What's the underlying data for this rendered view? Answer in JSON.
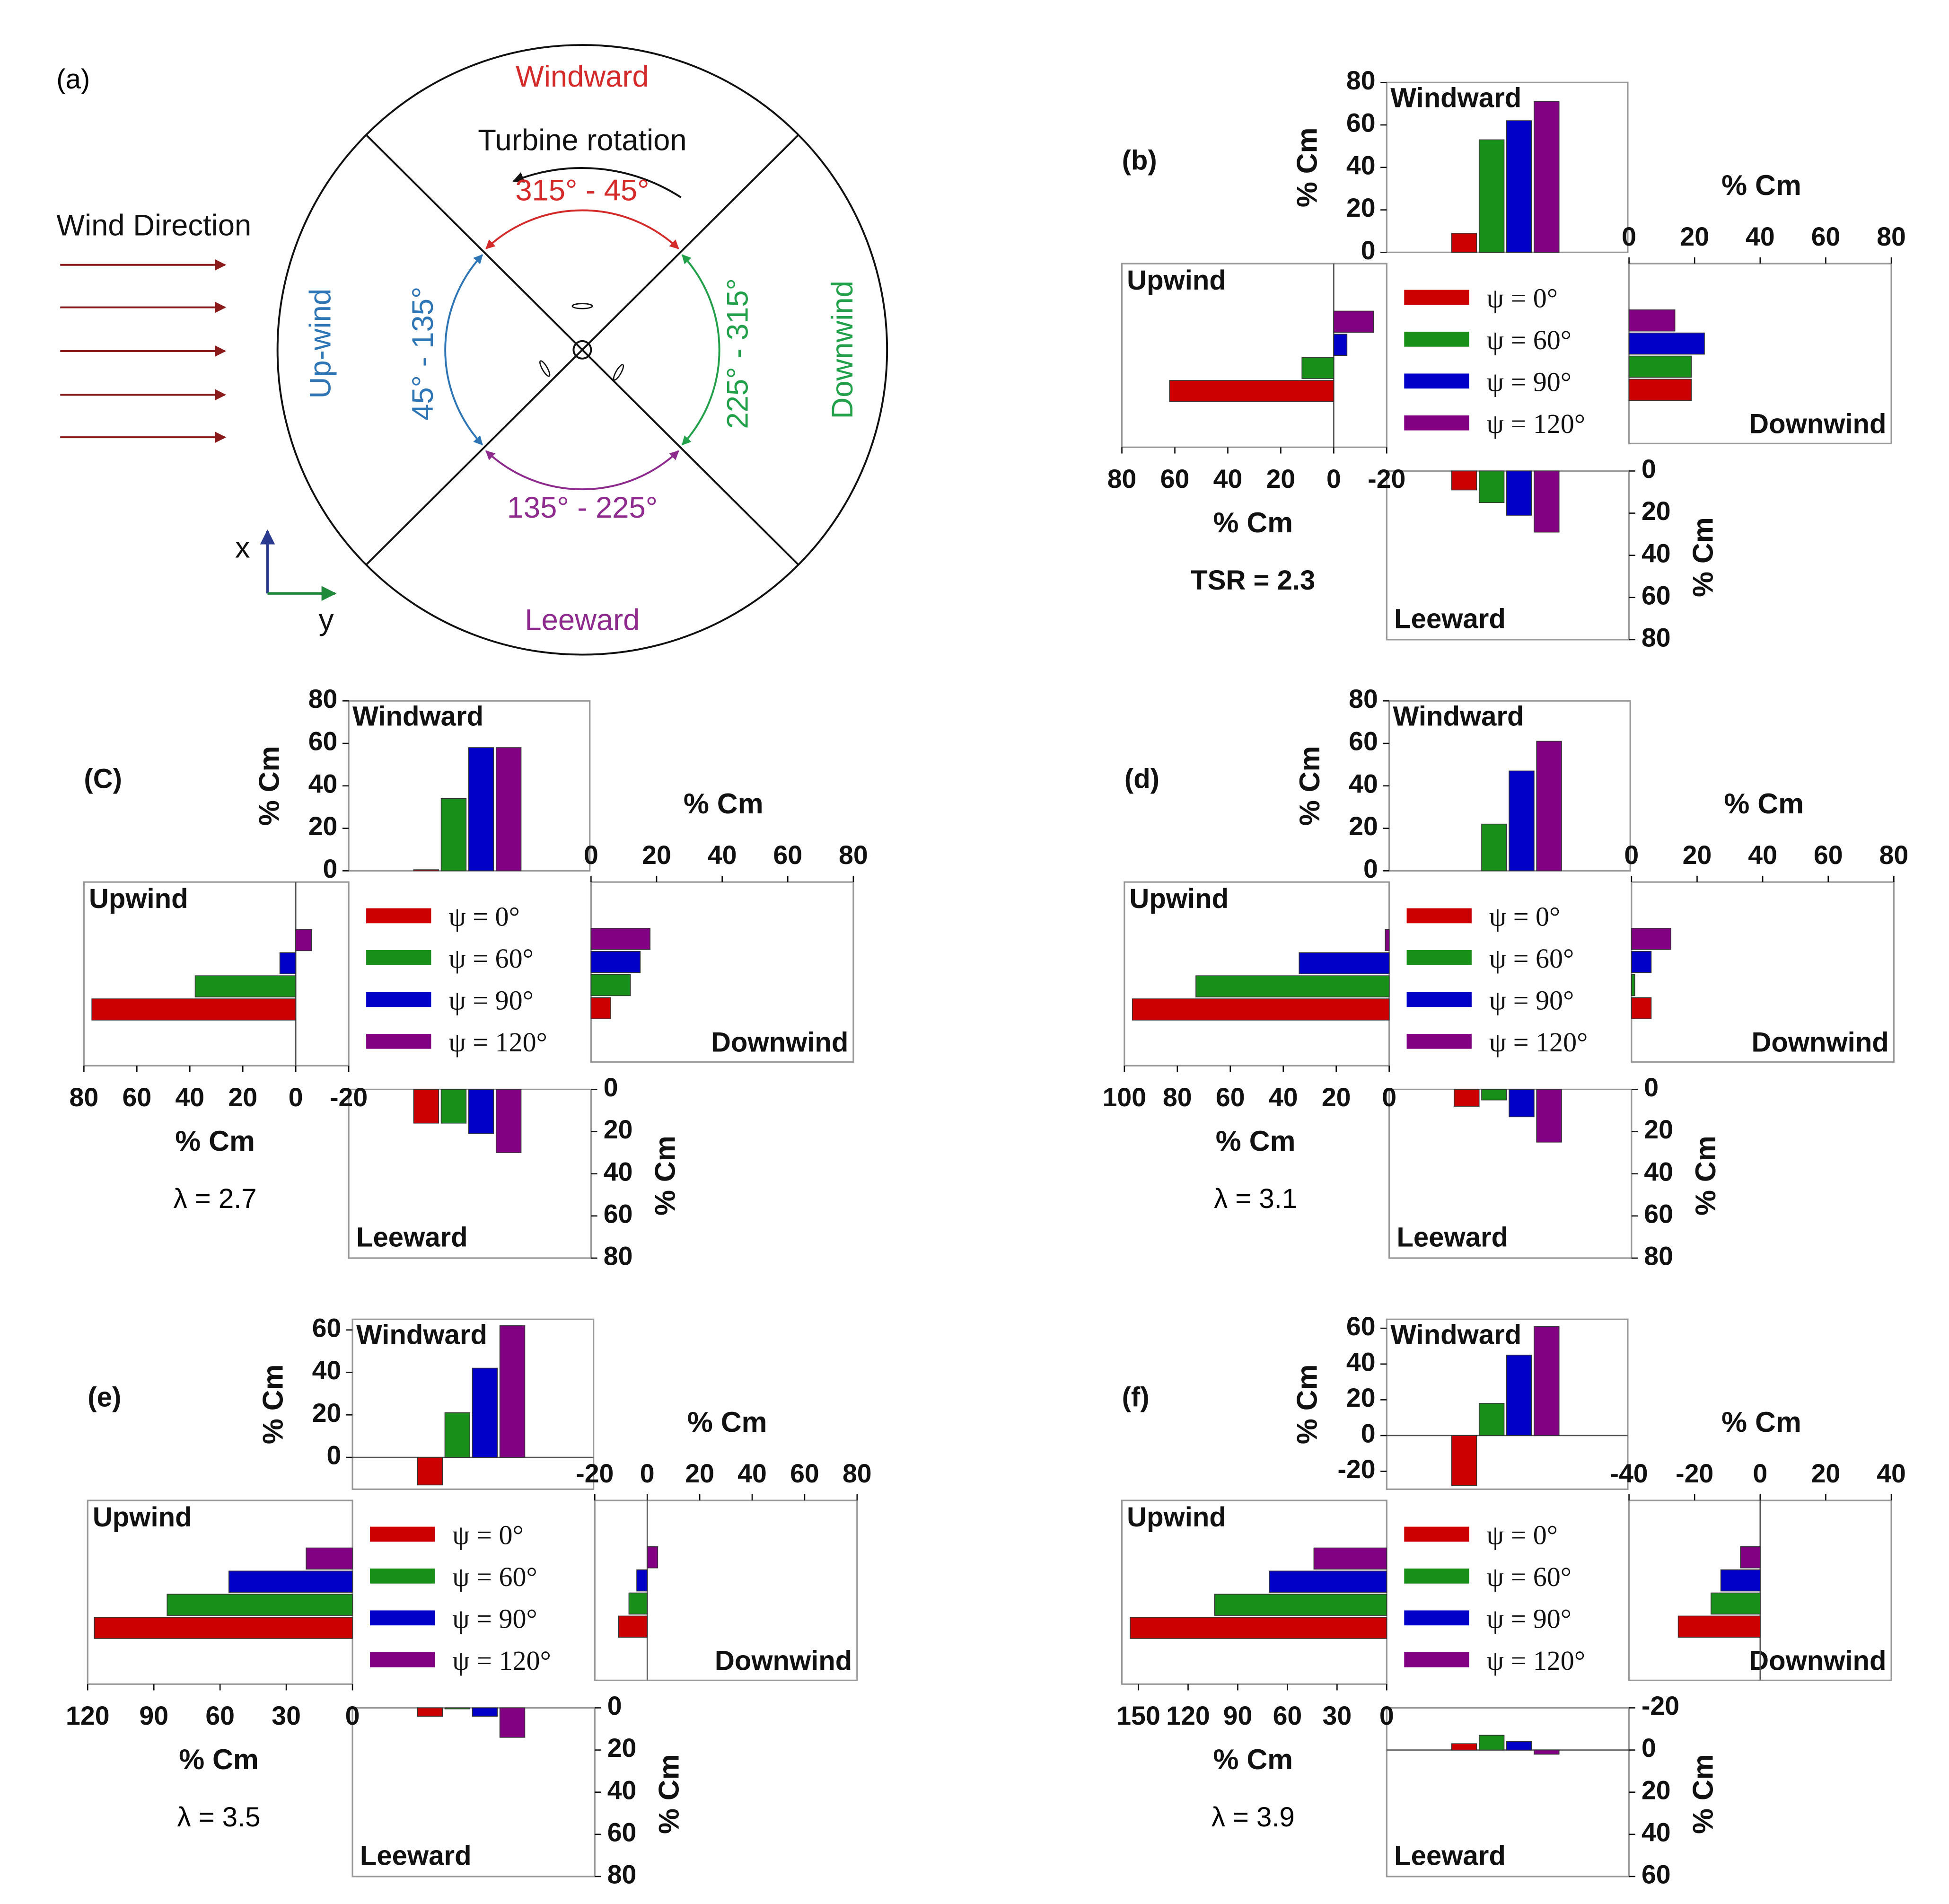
{
  "diagram": {
    "label": "(a)",
    "windward": "Windward",
    "leeward": "Leeward",
    "upwind": "Up-wind",
    "downwind": "Downwind",
    "rotation": "Turbine rotation",
    "wind": "Wind Direction",
    "arc_top": "315° - 45°",
    "arc_left": "45° - 135°",
    "arc_bottom": "135° - 225°",
    "arc_right": "225° - 315°",
    "x": "x",
    "y": "y"
  },
  "chart_data": [
    {
      "type": "quad-bar",
      "label": "(b)",
      "note": "TSR = 2.3",
      "series": [
        {
          "name": "ψ = 0°",
          "color": "#cc0000"
        },
        {
          "name": "ψ = 60°",
          "color": "#188f18"
        },
        {
          "name": "ψ = 90°",
          "color": "#0000c8"
        },
        {
          "name": "ψ = 120°",
          "color": "#820082"
        }
      ],
      "windward": {
        "title": "Windward",
        "axis_label": "% Cm",
        "values": [
          9,
          53,
          62,
          71
        ],
        "ylim": [
          0,
          80
        ],
        "yticks": [
          0,
          20,
          40,
          60,
          80
        ]
      },
      "upwind": {
        "title": "Upwind",
        "axis_label": "% Cm",
        "values": [
          62,
          12,
          -5,
          -15
        ],
        "xlim": [
          80,
          -20
        ],
        "xticks": [
          80,
          60,
          40,
          20,
          0,
          -20
        ]
      },
      "downwind": {
        "title": "Downwind",
        "axis_label": "% Cm",
        "values": [
          19,
          19,
          23,
          14
        ],
        "xlim": [
          0,
          80
        ],
        "xticks": [
          0,
          20,
          40,
          60,
          80
        ]
      },
      "leeward": {
        "title": "Leeward",
        "axis_label": "% Cm",
        "values": [
          9,
          15,
          21,
          29
        ],
        "ylim": [
          0,
          80
        ],
        "yticks": [
          0,
          20,
          40,
          60,
          80
        ]
      }
    },
    {
      "type": "quad-bar",
      "label": "(C)",
      "note": "λ = 2.7",
      "series": [
        {
          "name": "ψ = 0°",
          "color": "#cc0000"
        },
        {
          "name": "ψ = 60°",
          "color": "#188f18"
        },
        {
          "name": "ψ = 90°",
          "color": "#0000c8"
        },
        {
          "name": "ψ = 120°",
          "color": "#820082"
        }
      ],
      "windward": {
        "title": "Windward",
        "axis_label": "% Cm",
        "values": [
          0.5,
          34,
          58,
          58
        ],
        "ylim": [
          0,
          80
        ],
        "yticks": [
          0,
          20,
          40,
          60,
          80
        ]
      },
      "upwind": {
        "title": "Upwind",
        "axis_label": "% Cm",
        "values": [
          77,
          38,
          6,
          -6
        ],
        "xlim": [
          80,
          -20
        ],
        "xticks": [
          80,
          60,
          40,
          20,
          0,
          -20
        ]
      },
      "downwind": {
        "title": "Downwind",
        "axis_label": "% Cm",
        "values": [
          6,
          12,
          15,
          18
        ],
        "xlim": [
          0,
          80
        ],
        "xticks": [
          0,
          20,
          40,
          60,
          80
        ]
      },
      "leeward": {
        "title": "Leeward",
        "axis_label": "% Cm",
        "values": [
          16,
          16,
          21,
          30
        ],
        "ylim": [
          0,
          80
        ],
        "yticks": [
          0,
          20,
          40,
          60,
          80
        ]
      }
    },
    {
      "type": "quad-bar",
      "label": "(d)",
      "note": "λ = 3.1",
      "series": [
        {
          "name": "ψ = 0°",
          "color": "#cc0000"
        },
        {
          "name": "ψ = 60°",
          "color": "#188f18"
        },
        {
          "name": "ψ = 90°",
          "color": "#0000c8"
        },
        {
          "name": "ψ = 120°",
          "color": "#820082"
        }
      ],
      "windward": {
        "title": "Windward",
        "axis_label": "% Cm",
        "values": [
          0,
          22,
          47,
          61
        ],
        "ylim": [
          0,
          80
        ],
        "yticks": [
          0,
          20,
          40,
          60,
          80
        ]
      },
      "upwind": {
        "title": "Upwind",
        "axis_label": "% Cm",
        "values": [
          97,
          73,
          34,
          1.5
        ],
        "xlim": [
          100,
          0
        ],
        "xticks": [
          100,
          80,
          60,
          40,
          20,
          0
        ]
      },
      "downwind": {
        "title": "Downwind",
        "axis_label": "% Cm",
        "values": [
          6,
          1,
          6,
          12
        ],
        "xlim": [
          0,
          80
        ],
        "xticks": [
          0,
          20,
          40,
          60,
          80
        ]
      },
      "leeward": {
        "title": "Leeward",
        "axis_label": "% Cm",
        "values": [
          8,
          5,
          13,
          25
        ],
        "ylim": [
          0,
          80
        ],
        "yticks": [
          0,
          20,
          40,
          60,
          80
        ]
      }
    },
    {
      "type": "quad-bar",
      "label": "(e)",
      "note": "λ = 3.5",
      "series": [
        {
          "name": "ψ = 0°",
          "color": "#cc0000"
        },
        {
          "name": "ψ = 60°",
          "color": "#188f18"
        },
        {
          "name": "ψ = 90°",
          "color": "#0000c8"
        },
        {
          "name": "ψ = 120°",
          "color": "#820082"
        }
      ],
      "windward": {
        "title": "Windward",
        "axis_label": "% Cm",
        "values": [
          -13,
          21,
          42,
          62
        ],
        "ylim": [
          -15,
          65
        ],
        "yticks": [
          0,
          20,
          40,
          60
        ]
      },
      "upwind": {
        "title": "Upwind",
        "axis_label": "% Cm",
        "values": [
          117,
          84,
          56,
          21
        ],
        "xlim": [
          120,
          0
        ],
        "xticks": [
          120,
          90,
          60,
          30,
          0
        ]
      },
      "downwind": {
        "title": "Downwind",
        "axis_label": "% Cm",
        "values": [
          -11,
          -7,
          -4,
          4
        ],
        "xlim": [
          -20,
          80
        ],
        "xticks": [
          -20,
          0,
          20,
          40,
          60,
          80
        ]
      },
      "leeward": {
        "title": "Leeward",
        "axis_label": "% Cm",
        "values": [
          4,
          0.5,
          4,
          14
        ],
        "ylim": [
          0,
          80
        ],
        "yticks": [
          0,
          20,
          40,
          60,
          80
        ]
      }
    },
    {
      "type": "quad-bar",
      "label": "(f)",
      "note": "λ = 3.9",
      "series": [
        {
          "name": "ψ = 0°",
          "color": "#cc0000"
        },
        {
          "name": "ψ = 60°",
          "color": "#188f18"
        },
        {
          "name": "ψ = 90°",
          "color": "#0000c8"
        },
        {
          "name": "ψ = 120°",
          "color": "#820082"
        }
      ],
      "windward": {
        "title": "Windward",
        "axis_label": "% Cm",
        "values": [
          -28,
          18,
          45,
          61
        ],
        "ylim": [
          -30,
          65
        ],
        "yticks": [
          -20,
          0,
          20,
          40,
          60
        ]
      },
      "upwind": {
        "title": "Upwind",
        "axis_label": "% Cm",
        "values": [
          155,
          104,
          71,
          44
        ],
        "xlim": [
          160,
          0
        ],
        "xticks": [
          150,
          120,
          90,
          60,
          30,
          0
        ]
      },
      "downwind": {
        "title": "Downwind",
        "axis_label": "% Cm",
        "values": [
          -25,
          -15,
          -12,
          -6
        ],
        "xlim": [
          -40,
          40
        ],
        "xticks": [
          -40,
          -20,
          0,
          20,
          40
        ]
      },
      "leeward": {
        "title": "Leeward",
        "axis_label": "% Cm",
        "values": [
          -3,
          -7,
          -4,
          2
        ],
        "ylim": [
          -20,
          60
        ],
        "yticks": [
          -20,
          0,
          20,
          40,
          60
        ]
      }
    }
  ]
}
